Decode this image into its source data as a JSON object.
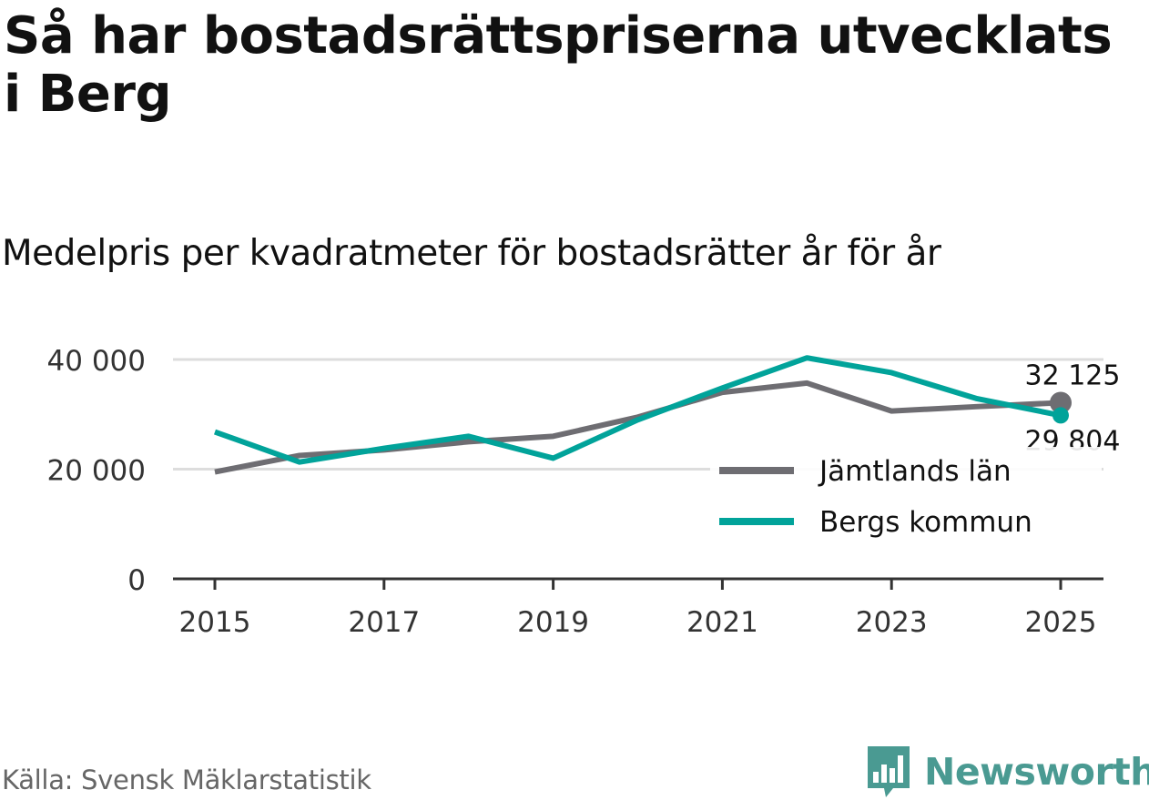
{
  "title": "Så har bostadsrättspriserna utvecklats i Berg",
  "subtitle": "Medelpris per kvadratmeter för bostadsrätter år för år",
  "source": "Källa: Svensk Mäklarstatistik",
  "brand": "Newsworthy",
  "colors": {
    "jamtland": "#6e6d72",
    "berg": "#01a39a",
    "grid": "#dddddd",
    "axis": "#333333",
    "brand": "#4a9a92"
  },
  "chart_data": {
    "type": "line",
    "title": "Så har bostadsrättspriserna utvecklats i Berg",
    "subtitle": "Medelpris per kvadratmeter för bostadsrätter år för år",
    "x": [
      2015,
      2016,
      2017,
      2018,
      2019,
      2020,
      2021,
      2022,
      2023,
      2024,
      2025
    ],
    "xticks": [
      2015,
      2017,
      2019,
      2021,
      2023,
      2025
    ],
    "xlim": [
      2015,
      2025
    ],
    "yticks": [
      0,
      20000,
      40000
    ],
    "ytick_labels": [
      "0",
      "20 000",
      "40 000"
    ],
    "ylim": [
      0,
      40000
    ],
    "grid": true,
    "legend_position": "right",
    "series": [
      {
        "name": "Jämtlands län",
        "color": "#6e6d72",
        "values": [
          19500,
          22500,
          23500,
          25000,
          26000,
          29500,
          34000,
          35700,
          30600,
          31400,
          32125
        ],
        "end_label": "32 125"
      },
      {
        "name": "Bergs kommun",
        "color": "#01a39a",
        "values": [
          26800,
          21300,
          23800,
          26000,
          22000,
          29000,
          34800,
          40300,
          37600,
          32900,
          29804
        ],
        "end_label": "29 804"
      }
    ]
  }
}
